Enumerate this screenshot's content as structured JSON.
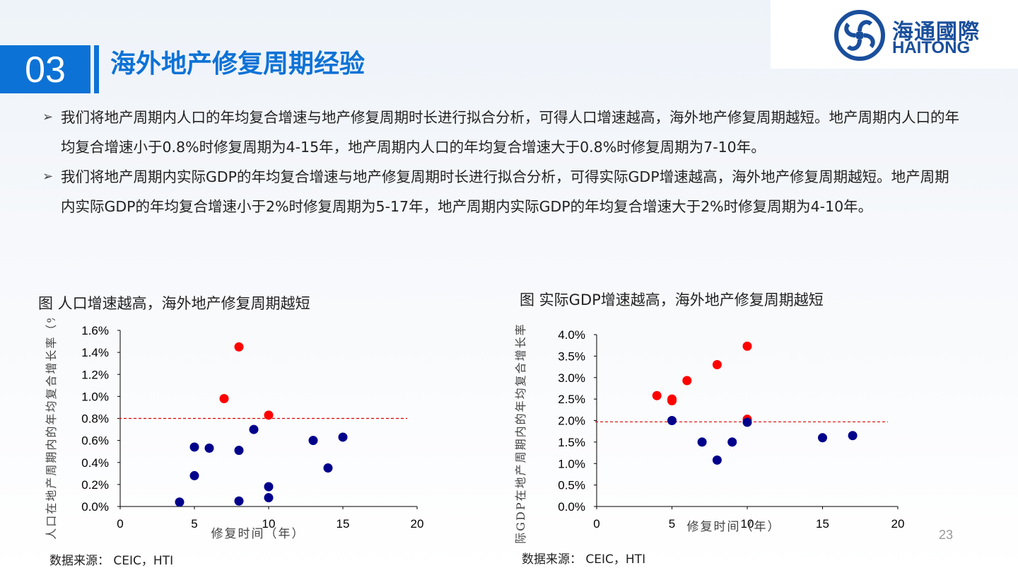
{
  "logo": {
    "cn": "海通國際",
    "en": "HAITONG"
  },
  "section": {
    "number": "03",
    "title": "海外地产修复周期经验"
  },
  "bullets": [
    "我们将地产周期内人口的年均复合增速与地产修复周期时长进行拟合分析，可得人口增速越高，海外地产修复周期越短。地产周期内人口的年均复合增速小于0.8%时修复周期为4-15年，地产周期内人口的年均复合增速大于0.8%时修复周期为7-10年。",
    "我们将地产周期内实际GDP的年均复合增速与地产修复周期时长进行拟合分析，可得实际GDP增速越高，海外地产修复周期越短。地产周期内实际GDP的年均复合增速小于2%时修复周期为5-17年，地产周期内实际GDP的年均复合增速大于2%时修复周期为4-10年。"
  ],
  "captions": {
    "left": "图  人口增速越高，海外地产修复周期越短",
    "right": "图  实际GDP增速越高，海外地产修复周期越短"
  },
  "sources": {
    "left": "数据来源：  CEIC，HTI",
    "right": "数据来源：  CEIC，HTI"
  },
  "page_number": "23",
  "colors": {
    "accent": "#0d72d6",
    "red": "#ff0000",
    "navy": "#00008b"
  },
  "chart_data": [
    {
      "type": "scatter",
      "xlabel": "修复时间（年）",
      "ylabel": "人口在地产周期内的年均复合增长率（%）",
      "xlim": [
        0,
        20
      ],
      "ylim": [
        0,
        1.6
      ],
      "x_ticks": [
        0,
        5,
        10,
        15,
        20
      ],
      "y_ticks": [
        "0.0%",
        "0.2%",
        "0.4%",
        "0.6%",
        "0.8%",
        "1.0%",
        "1.2%",
        "1.4%",
        "1.6%"
      ],
      "threshold": 0.8,
      "series": [
        {
          "color": "#ff0000",
          "points": [
            [
              7,
              0.98
            ],
            [
              8,
              1.45
            ],
            [
              10,
              0.83
            ]
          ]
        },
        {
          "color": "#00008b",
          "points": [
            [
              4,
              0.04
            ],
            [
              5,
              0.54
            ],
            [
              5,
              0.28
            ],
            [
              6,
              0.53
            ],
            [
              8,
              0.51
            ],
            [
              8,
              0.05
            ],
            [
              9,
              0.7
            ],
            [
              10,
              0.18
            ],
            [
              10,
              0.08
            ],
            [
              13,
              0.6
            ],
            [
              14,
              0.35
            ],
            [
              15,
              0.63
            ]
          ]
        }
      ]
    },
    {
      "type": "scatter",
      "xlabel": "修复时间（年）",
      "ylabel": "实际GDP在地产周期内的年均复合增长率（%）",
      "xlim": [
        0,
        20
      ],
      "ylim": [
        0,
        4.0
      ],
      "x_ticks": [
        0,
        5,
        10,
        15,
        20
      ],
      "y_ticks": [
        "0.0%",
        "0.5%",
        "1.0%",
        "1.5%",
        "2.0%",
        "2.5%",
        "3.0%",
        "3.5%",
        "4.0%"
      ],
      "threshold": 1.97,
      "series": [
        {
          "color": "#ff0000",
          "points": [
            [
              4,
              2.58
            ],
            [
              5,
              2.5
            ],
            [
              5,
              2.46
            ],
            [
              6,
              2.93
            ],
            [
              8,
              3.3
            ],
            [
              10,
              3.73
            ],
            [
              10,
              2.03
            ]
          ]
        },
        {
          "color": "#00008b",
          "points": [
            [
              5,
              2.0
            ],
            [
              7,
              1.5
            ],
            [
              8,
              1.08
            ],
            [
              9,
              1.5
            ],
            [
              10,
              1.96
            ],
            [
              15,
              1.6
            ],
            [
              17,
              1.65
            ]
          ]
        }
      ]
    }
  ]
}
